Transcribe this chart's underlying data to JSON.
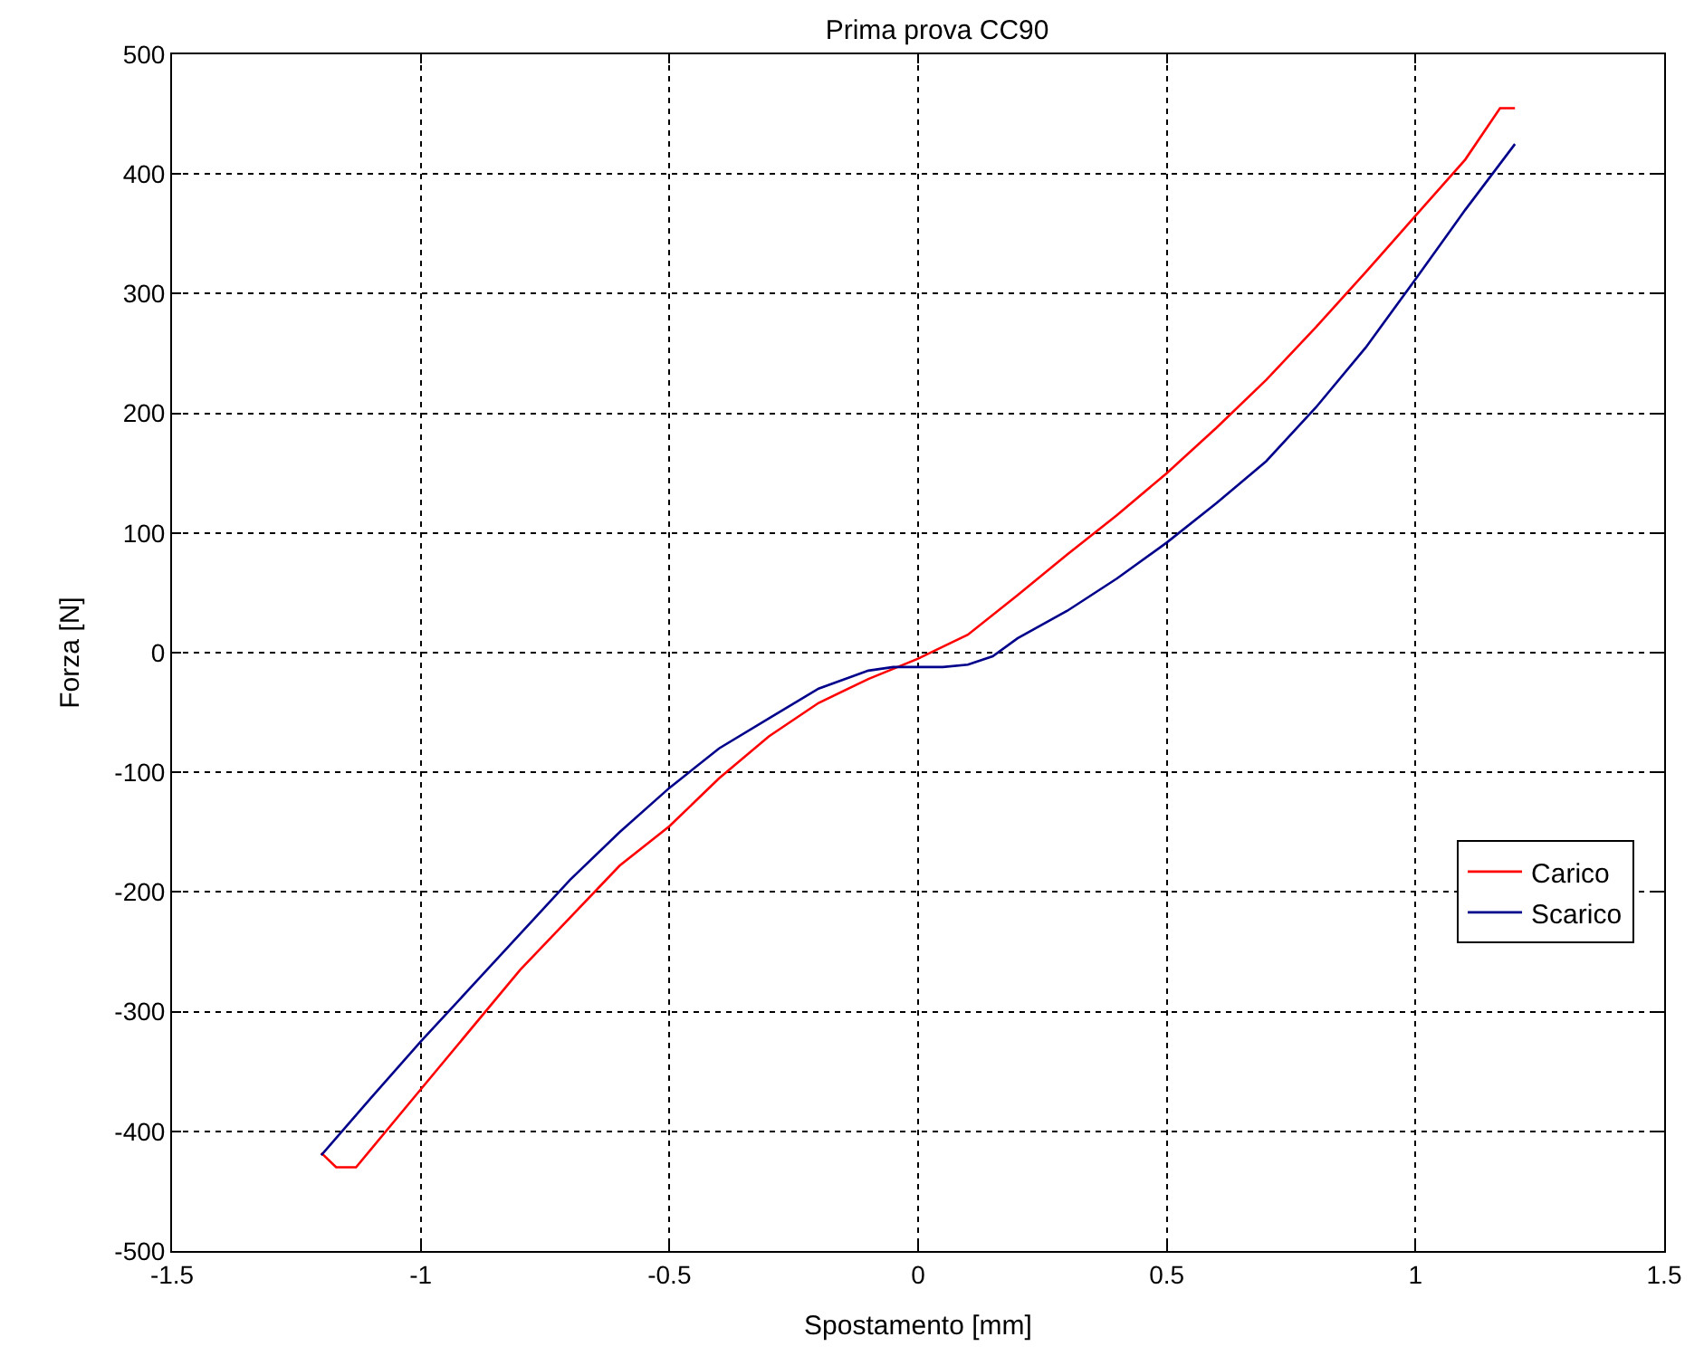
{
  "chart_data": {
    "type": "line",
    "title": "Prima prova CC90",
    "xlabel": "Spostamento [mm]",
    "ylabel": "Forza [N]",
    "xlim": [
      -1.5,
      1.5
    ],
    "xticks": [
      -1.5,
      -1,
      -0.5,
      0,
      0.5,
      1,
      1.5
    ],
    "ylim": [
      -500,
      500
    ],
    "yticks": [
      -500,
      -400,
      -300,
      -200,
      -100,
      0,
      100,
      200,
      300,
      400,
      500
    ],
    "grid": true,
    "legend": "bottom right",
    "series": [
      {
        "name": "Carico",
        "color": "#ff0000",
        "x": [
          -1.2,
          -1.17,
          -1.13,
          -1.0,
          -0.8,
          -0.6,
          -0.5,
          -0.4,
          -0.3,
          -0.2,
          -0.1,
          0,
          0.1,
          0.2,
          0.3,
          0.4,
          0.5,
          0.6,
          0.7,
          0.8,
          0.9,
          1.0,
          1.1,
          1.17,
          1.2
        ],
        "values": [
          -418,
          -430,
          -430,
          -365,
          -265,
          -178,
          -145,
          -105,
          -70,
          -42,
          -22,
          -5,
          15,
          48,
          82,
          115,
          150,
          188,
          228,
          272,
          318,
          365,
          412,
          455,
          455
        ]
      },
      {
        "name": "Scarico",
        "color": "#00008b",
        "x": [
          1.2,
          1.1,
          1.0,
          0.9,
          0.8,
          0.7,
          0.6,
          0.5,
          0.4,
          0.3,
          0.2,
          0.15,
          0.1,
          0.05,
          0,
          -0.05,
          -0.1,
          -0.2,
          -0.3,
          -0.4,
          -0.5,
          -0.6,
          -0.7,
          -0.8,
          -0.9,
          -1.0,
          -1.1,
          -1.2
        ],
        "values": [
          425,
          370,
          312,
          255,
          205,
          160,
          125,
          92,
          62,
          35,
          12,
          -3,
          -10,
          -12,
          -12,
          -12,
          -15,
          -30,
          -55,
          -80,
          -113,
          -150,
          -190,
          -235,
          -280,
          -325,
          -372,
          -420
        ]
      }
    ]
  }
}
